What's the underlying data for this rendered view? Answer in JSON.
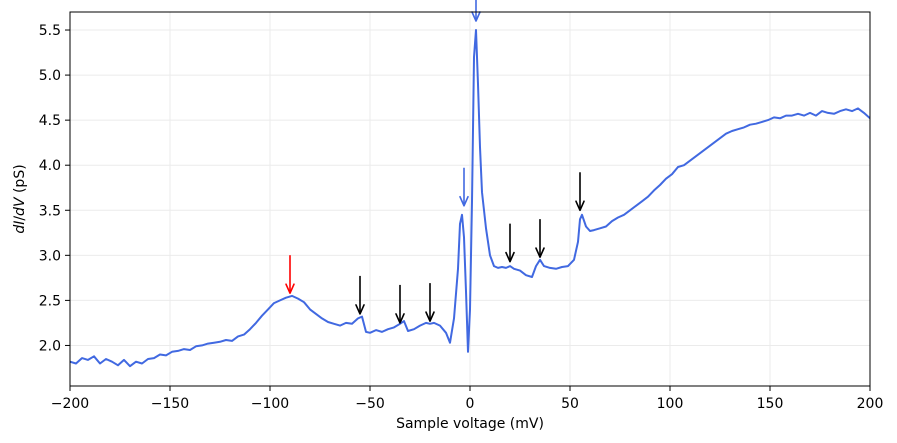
{
  "chart_data": {
    "type": "line",
    "title": "",
    "xlabel": "Sample voltage (mV)",
    "ylabel": {
      "parts": [
        "dI",
        "/",
        "dV",
        " (pS)"
      ]
    },
    "xlim": [
      -200,
      200
    ],
    "ylim": [
      1.55,
      5.7
    ],
    "xticks": [
      -200,
      -150,
      -100,
      -50,
      0,
      50,
      100,
      150,
      200
    ],
    "xtick_labels": [
      "−200",
      "−150",
      "−100",
      "−50",
      "0",
      "50",
      "100",
      "150",
      "200"
    ],
    "yticks": [
      2.0,
      2.5,
      3.0,
      3.5,
      4.0,
      4.5,
      5.0,
      5.5
    ],
    "ytick_labels": [
      "2.0",
      "2.5",
      "3.0",
      "3.5",
      "4.0",
      "4.5",
      "5.0",
      "5.5"
    ],
    "grid": true,
    "line_color": "#4169e1",
    "series": [
      {
        "x": [
          -200,
          -197,
          -194,
          -191,
          -188,
          -185,
          -182,
          -179,
          -176,
          -173,
          -170,
          -167,
          -164,
          -161,
          -158,
          -155,
          -152,
          -149,
          -146,
          -143,
          -140,
          -137,
          -134,
          -131,
          -128,
          -125,
          -122,
          -119,
          -116,
          -113,
          -110,
          -107,
          -104,
          -101,
          -98,
          -95,
          -92,
          -89,
          -86,
          -83,
          -80,
          -77,
          -74,
          -71,
          -68,
          -65,
          -62,
          -59,
          -56,
          -54,
          -52,
          -50,
          -47,
          -44,
          -41,
          -38,
          -35,
          -33,
          -31,
          -28,
          -25,
          -22,
          -20,
          -18,
          -15,
          -12,
          -10,
          -8,
          -6,
          -5,
          -4,
          -3,
          -2,
          -1,
          0,
          1,
          2,
          3,
          4,
          5,
          6,
          8,
          10,
          12,
          14,
          16,
          18,
          20,
          22,
          25,
          28,
          31,
          33,
          35,
          37,
          40,
          43,
          46,
          49,
          52,
          54,
          55,
          56,
          58,
          60,
          62,
          65,
          68,
          71,
          74,
          77,
          80,
          83,
          86,
          89,
          92,
          95,
          98,
          101,
          104,
          107,
          110,
          113,
          116,
          119,
          122,
          125,
          128,
          131,
          134,
          137,
          140,
          143,
          146,
          149,
          152,
          155,
          158,
          161,
          164,
          167,
          170,
          173,
          176,
          179,
          182,
          185,
          188,
          191,
          194,
          197,
          200
        ],
        "values": [
          1.82,
          1.8,
          1.86,
          1.84,
          1.88,
          1.8,
          1.85,
          1.82,
          1.78,
          1.84,
          1.77,
          1.82,
          1.8,
          1.85,
          1.86,
          1.9,
          1.89,
          1.93,
          1.94,
          1.96,
          1.95,
          1.99,
          2.0,
          2.02,
          2.03,
          2.04,
          2.06,
          2.05,
          2.1,
          2.12,
          2.18,
          2.25,
          2.33,
          2.4,
          2.47,
          2.5,
          2.53,
          2.55,
          2.52,
          2.48,
          2.4,
          2.35,
          2.3,
          2.26,
          2.24,
          2.22,
          2.25,
          2.24,
          2.3,
          2.32,
          2.15,
          2.14,
          2.17,
          2.15,
          2.18,
          2.2,
          2.24,
          2.27,
          2.16,
          2.18,
          2.22,
          2.25,
          2.24,
          2.25,
          2.22,
          2.14,
          2.03,
          2.3,
          2.85,
          3.35,
          3.45,
          3.2,
          2.6,
          1.93,
          2.4,
          3.6,
          5.2,
          5.5,
          4.9,
          4.2,
          3.7,
          3.3,
          3.0,
          2.88,
          2.86,
          2.87,
          2.86,
          2.88,
          2.85,
          2.83,
          2.78,
          2.76,
          2.88,
          2.95,
          2.88,
          2.86,
          2.85,
          2.87,
          2.88,
          2.95,
          3.15,
          3.4,
          3.45,
          3.32,
          3.27,
          3.28,
          3.3,
          3.32,
          3.38,
          3.42,
          3.45,
          3.5,
          3.55,
          3.6,
          3.65,
          3.72,
          3.78,
          3.85,
          3.9,
          3.98,
          4.0,
          4.05,
          4.1,
          4.15,
          4.2,
          4.25,
          4.3,
          4.35,
          4.38,
          4.4,
          4.42,
          4.45,
          4.46,
          4.48,
          4.5,
          4.53,
          4.52,
          4.55,
          4.55,
          4.57,
          4.55,
          4.58,
          4.55,
          4.6,
          4.58,
          4.57,
          4.6,
          4.62,
          4.6,
          4.63,
          4.58,
          4.52
        ]
      }
    ],
    "annotations": [
      {
        "type": "arrow",
        "x": -90,
        "y": 2.58,
        "color": "#ff0000"
      },
      {
        "type": "arrow",
        "x": -55,
        "y": 2.35,
        "color": "#000000"
      },
      {
        "type": "arrow",
        "x": -35,
        "y": 2.25,
        "color": "#000000"
      },
      {
        "type": "arrow",
        "x": -20,
        "y": 2.27,
        "color": "#000000"
      },
      {
        "type": "arrow",
        "x": -3,
        "y": 3.55,
        "color": "#4169e1"
      },
      {
        "type": "arrow",
        "x": 3,
        "y": 5.6,
        "color": "#4169e1"
      },
      {
        "type": "arrow",
        "x": 20,
        "y": 2.93,
        "color": "#000000"
      },
      {
        "type": "arrow",
        "x": 35,
        "y": 2.98,
        "color": "#000000"
      },
      {
        "type": "arrow",
        "x": 55,
        "y": 3.5,
        "color": "#000000"
      }
    ]
  }
}
